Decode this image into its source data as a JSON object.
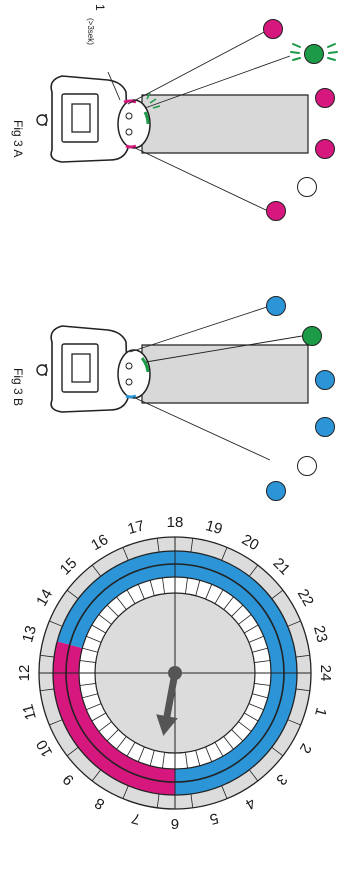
{
  "fig_a": {
    "label": "Fig 3 A",
    "annotation_number": "1",
    "annotation_note": "(>3sek)",
    "dot_colors": [
      "#d6187e",
      "#1c9a47",
      "#d6187e",
      "#d6187e",
      "#ffffff",
      "#d6187e"
    ]
  },
  "fig_b": {
    "label": "Fig 3 B",
    "dot_colors": [
      "#2b95d8",
      "#1c9a47",
      "#2b95d8",
      "#2b95d8",
      "#ffffff",
      "#2b95d8"
    ]
  },
  "timer_dial": {
    "hour_labels": [
      "1",
      "2",
      "3",
      "4",
      "5",
      "6",
      "7",
      "8",
      "9",
      "10",
      "11",
      "12",
      "13",
      "14",
      "15",
      "16",
      "17",
      "18",
      "19",
      "20",
      "21",
      "22",
      "23",
      "24"
    ],
    "magenta_segment_hours": [
      6,
      13
    ],
    "blue_segment_hours": [
      13,
      6
    ],
    "pointer_hour": 6.7
  },
  "colors": {
    "magenta": "#d6187e",
    "blue": "#2b95d8",
    "green": "#1c9a47",
    "dial_grey": "#dcdcdc",
    "plug_grey": "#d8d8d8",
    "pointer": "#555555"
  }
}
